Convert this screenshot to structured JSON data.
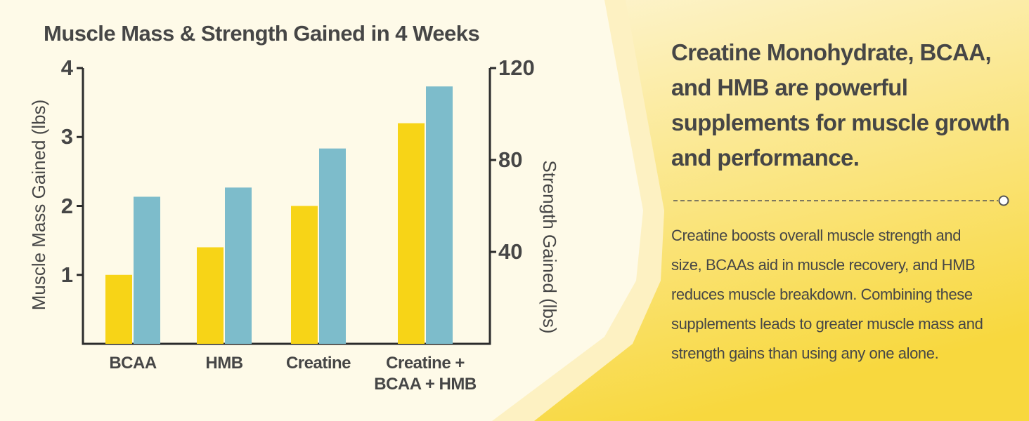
{
  "chart_data": {
    "type": "bar",
    "title": "Muscle Mass & Strength Gained in 4 Weeks",
    "y_label": "Muscle Mass Gained (lbs)",
    "y2_label": "Strength Gained (lbs)",
    "categories": [
      "BCAA",
      "HMB",
      "Creatine",
      "Creatine + BCAA + HMB"
    ],
    "series": [
      {
        "color": "#f7d417",
        "values": [
          1.0,
          1.4,
          2.0,
          3.2
        ]
      },
      {
        "color": "#7dbccb",
        "values": [
          64,
          68,
          85,
          112
        ],
        "axis": "y2"
      }
    ],
    "ylim": [
      0,
      4
    ],
    "yticks": [
      1,
      2,
      3,
      4
    ],
    "y2lim": [
      0,
      120
    ],
    "y2ticks": [
      40,
      80,
      120
    ]
  },
  "panel": {
    "heading": "Creatine Monohydrate, BCAA, and HMB are powerful supplements for muscle growth and performance.",
    "body": "Creatine boosts overall muscle strength and size, BCAAs aid in muscle recovery, and HMB reduces muscle breakdown. Combining these supplements leads to greater muscle mass and strength gains than using any one alone."
  }
}
